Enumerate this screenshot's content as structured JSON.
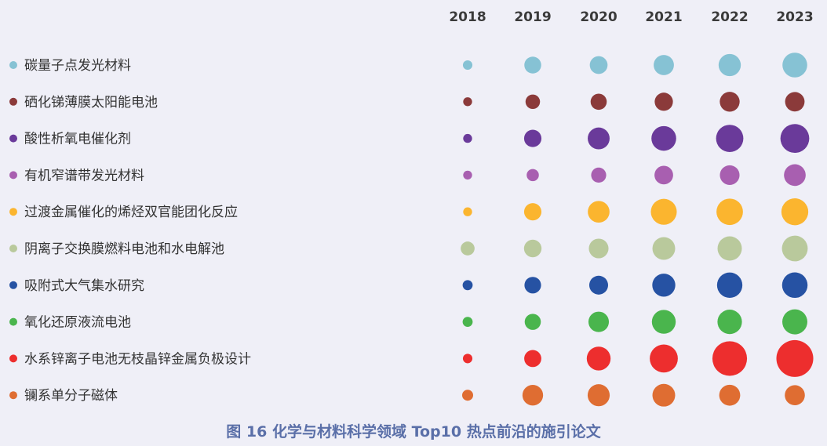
{
  "caption": "图 16 化学与材料科学领域 Top10 热点前沿的施引论文",
  "chart_data": {
    "type": "bubble",
    "title": "图 16 化学与材料科学领域 Top10 热点前沿的施引论文",
    "years": [
      "2018",
      "2019",
      "2020",
      "2021",
      "2022",
      "2023"
    ],
    "size_scale_max": 100,
    "series": [
      {
        "name": "碳量子点发光材料",
        "color": "#86c2d4",
        "values": [
          5,
          27,
          31,
          43,
          54,
          70
        ]
      },
      {
        "name": "硒化锑薄膜太阳能电池",
        "color": "#8b3a3a",
        "values": [
          4,
          18,
          24,
          33,
          41,
          39
        ]
      },
      {
        "name": "酸性析氧电催化剂",
        "color": "#6a3a9a",
        "values": [
          4,
          29,
          52,
          70,
          88,
          100
        ]
      },
      {
        "name": "有机窄谱带发光材料",
        "color": "#a85fb0",
        "values": [
          4,
          11,
          20,
          35,
          40,
          51
        ]
      },
      {
        "name": "过渡金属催化的烯烃双官能团化反应",
        "color": "#fbb52f",
        "values": [
          4,
          29,
          51,
          78,
          82,
          85
        ]
      },
      {
        "name": "阴离子交换膜燃料电池和水电解池",
        "color": "#b9c99c",
        "values": [
          16,
          30,
          40,
          57,
          67,
          77
        ]
      },
      {
        "name": "吸附式大气集水研究",
        "color": "#2652a3",
        "values": [
          6,
          26,
          36,
          59,
          74,
          75
        ]
      },
      {
        "name": "氧化还原液流电池",
        "color": "#4ab54d",
        "values": [
          6,
          24,
          44,
          64,
          68,
          72
        ]
      },
      {
        "name": "水系锌离子电池无枝晶锌金属负极设计",
        "color": "#ed2e2e",
        "values": [
          5,
          28,
          64,
          94,
          152,
          175
        ]
      },
      {
        "name": "镧系单分子磁体",
        "color": "#df6d32",
        "values": [
          8,
          45,
          53,
          57,
          47,
          42
        ]
      }
    ]
  }
}
